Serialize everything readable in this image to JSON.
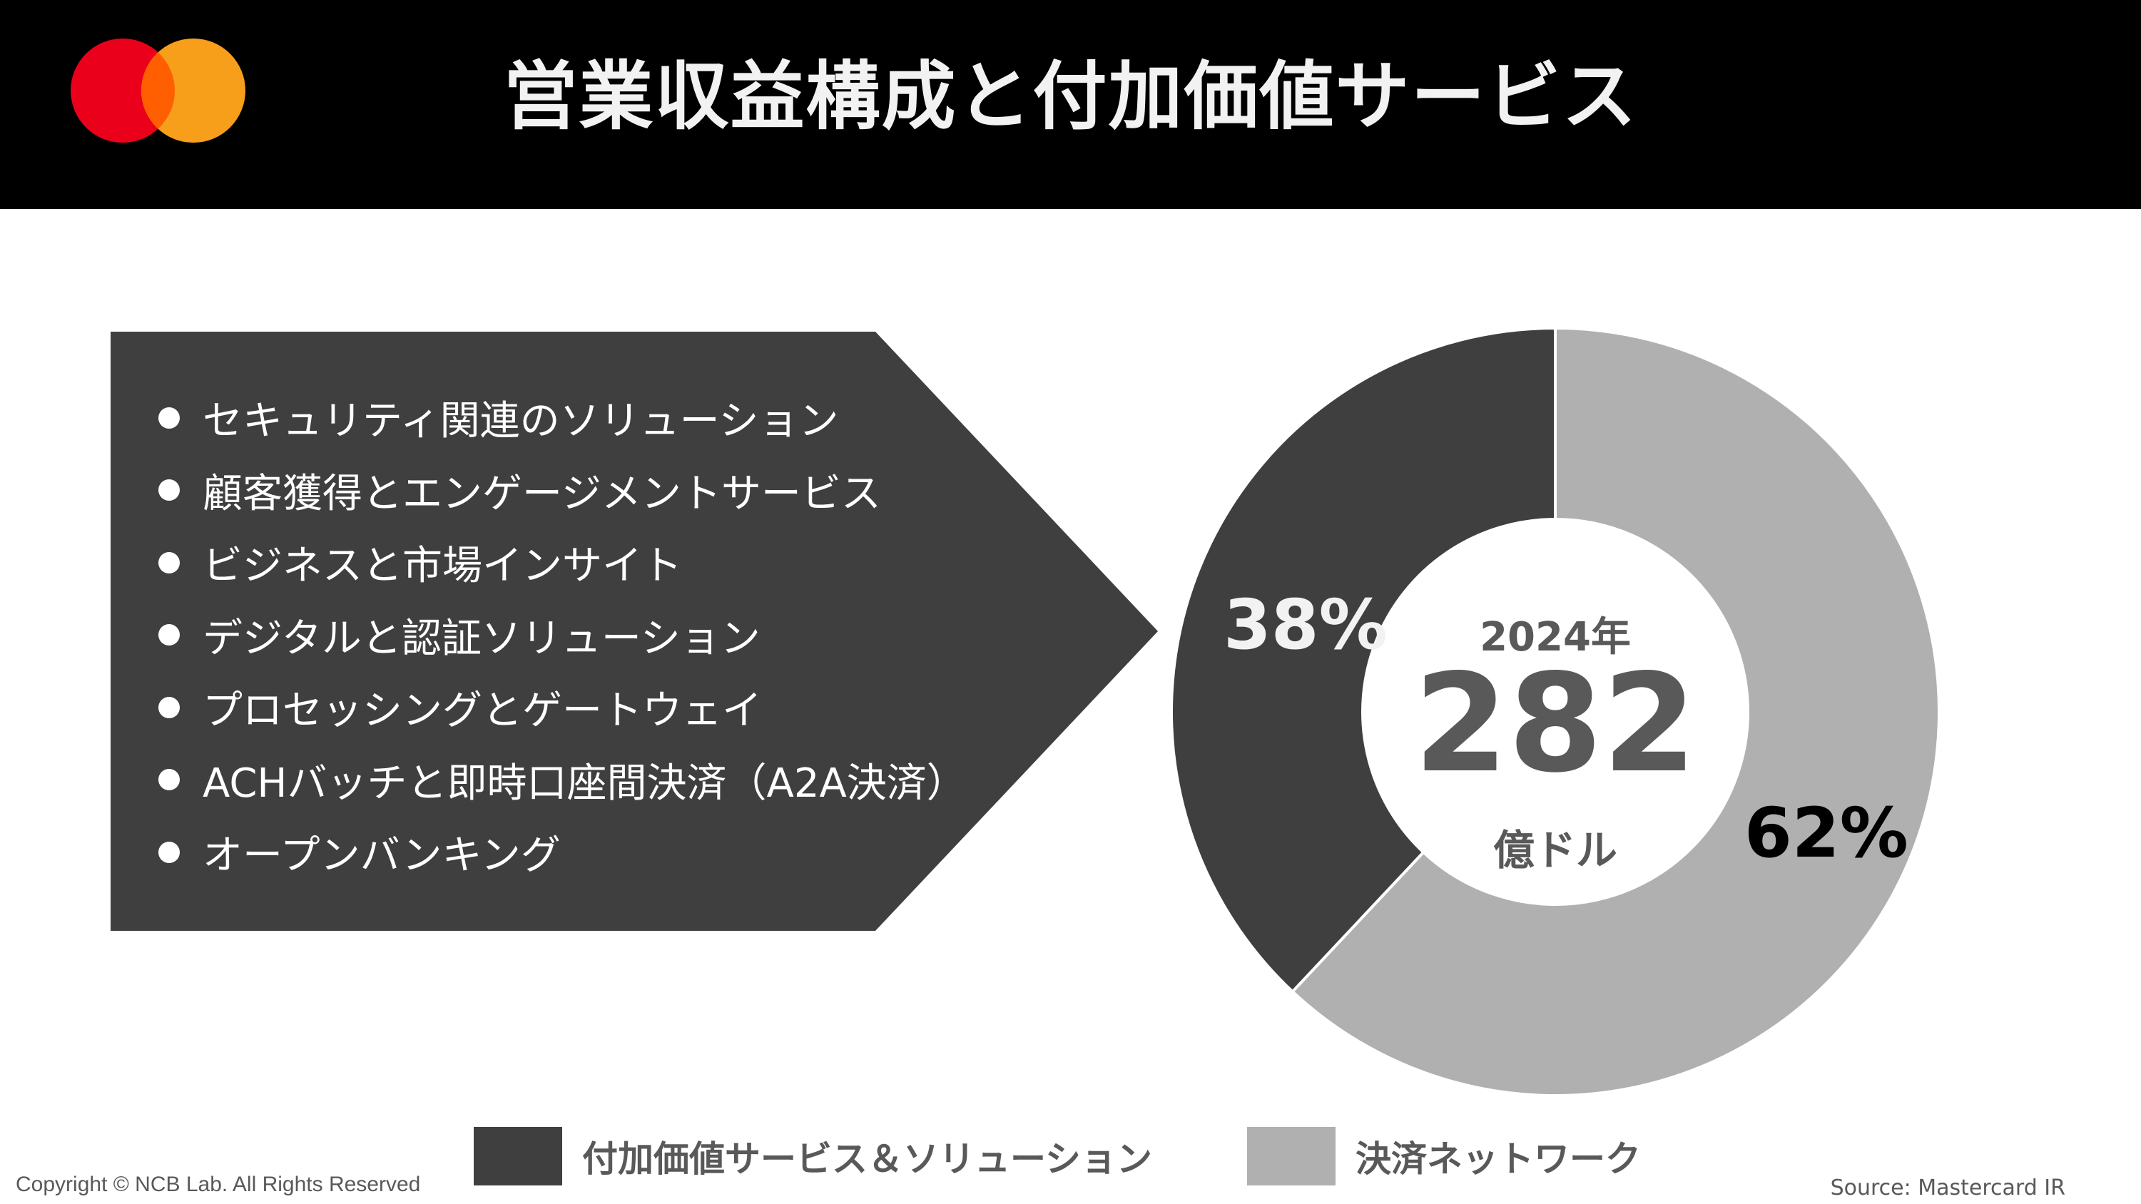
{
  "header": {
    "title": "営業収益構成と付加価値サービス",
    "logo": {
      "name": "mastercard-logo-icon",
      "colors": {
        "left": "#EB001B",
        "right": "#F79E1B",
        "overlap": "#FF5F00"
      }
    },
    "background": "#000000"
  },
  "services_panel": {
    "background": "#3f3f3f",
    "items": [
      {
        "label": "セキュリティ関連のソリューション"
      },
      {
        "label": "顧客獲得とエンゲージメントサービス"
      },
      {
        "label": "ビジネスと市場インサイト"
      },
      {
        "label": "デジタルと認証ソリューション"
      },
      {
        "label": "プロセッシングとゲートウェイ"
      },
      {
        "label": "ACHバッチと即時口座間決済（A2A決済）"
      },
      {
        "label": "オープンバンキング"
      }
    ]
  },
  "donut": {
    "center_year": "2024年",
    "center_value": "282",
    "center_unit": "億ドル",
    "labels": {
      "value_added": "38%",
      "payment_network": "62%"
    }
  },
  "legend": {
    "items": [
      {
        "label": "付加価値サービス＆ソリューション",
        "color": "#3f3f3f"
      },
      {
        "label": "決済ネットワーク",
        "color": "#b0b0b0"
      }
    ]
  },
  "footer": {
    "copyright": "Copyright © NCB Lab. All Rights Reserved",
    "source": "Source: Mastercard IR"
  },
  "chart_data": {
    "type": "pie",
    "title": "営業収益構成と付加価値サービス",
    "subtitle": "2024年 282 億ドル",
    "categories": [
      "決済ネットワーク",
      "付加価値サービス＆ソリューション"
    ],
    "values": [
      62,
      38
    ],
    "unit": "%",
    "total": {
      "label": "2024年",
      "value": 282,
      "unit": "億ドル"
    },
    "colors": [
      "#b0b0b0",
      "#3f3f3f"
    ],
    "donut": true,
    "start_angle": "12 o'clock, clockwise",
    "legend_position": "bottom"
  }
}
